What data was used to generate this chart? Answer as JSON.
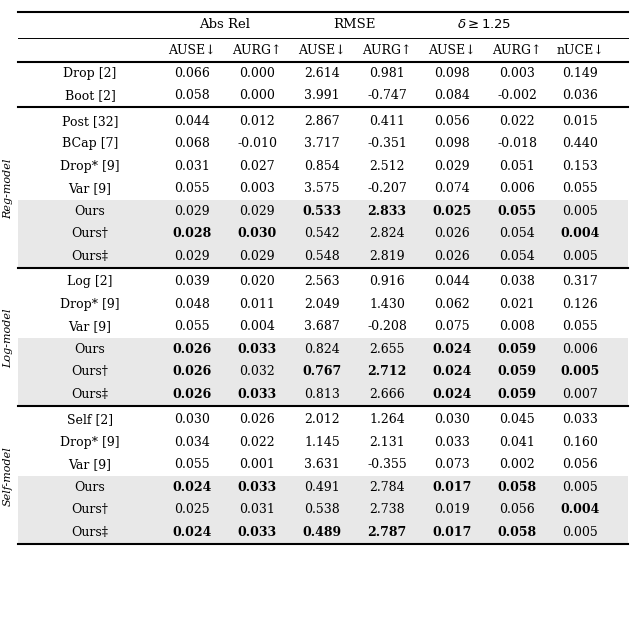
{
  "shaded_color": "#e8e8e8",
  "bg_color": "#ffffff",
  "text_color": "#000000",
  "col_headers_level2": [
    "AUSE↓",
    "AURG↑",
    "AUSE↓",
    "AURG↑",
    "AUSE↓",
    "AURG↑",
    "nUCE↓"
  ],
  "sections": [
    {
      "label": "",
      "rows": [
        {
          "method": "Drop [2]",
          "vals": [
            "0.066",
            "0.000",
            "2.614",
            "0.981",
            "0.098",
            "0.003",
            "0.149"
          ],
          "bold": [
            false,
            false,
            false,
            false,
            false,
            false,
            false
          ],
          "shaded": false
        },
        {
          "method": "Boot [2]",
          "vals": [
            "0.058",
            "0.000",
            "3.991",
            "-0.747",
            "0.084",
            "-0.002",
            "0.036"
          ],
          "bold": [
            false,
            false,
            false,
            false,
            false,
            false,
            false
          ],
          "shaded": false
        }
      ]
    },
    {
      "label": "Reg-model",
      "rows": [
        {
          "method": "Post [32]",
          "vals": [
            "0.044",
            "0.012",
            "2.867",
            "0.411",
            "0.056",
            "0.022",
            "0.015"
          ],
          "bold": [
            false,
            false,
            false,
            false,
            false,
            false,
            false
          ],
          "shaded": false
        },
        {
          "method": "BCap [7]",
          "vals": [
            "0.068",
            "-0.010",
            "3.717",
            "-0.351",
            "0.098",
            "-0.018",
            "0.440"
          ],
          "bold": [
            false,
            false,
            false,
            false,
            false,
            false,
            false
          ],
          "shaded": false
        },
        {
          "method": "Drop* [9]",
          "vals": [
            "0.031",
            "0.027",
            "0.854",
            "2.512",
            "0.029",
            "0.051",
            "0.153"
          ],
          "bold": [
            false,
            false,
            false,
            false,
            false,
            false,
            false
          ],
          "shaded": false
        },
        {
          "method": "Var [9]",
          "vals": [
            "0.055",
            "0.003",
            "3.575",
            "-0.207",
            "0.074",
            "0.006",
            "0.055"
          ],
          "bold": [
            false,
            false,
            false,
            false,
            false,
            false,
            false
          ],
          "shaded": false
        },
        {
          "method": "Ours",
          "vals": [
            "0.029",
            "0.029",
            "0.533",
            "2.833",
            "0.025",
            "0.055",
            "0.005"
          ],
          "bold": [
            false,
            false,
            true,
            true,
            true,
            true,
            false
          ],
          "shaded": true
        },
        {
          "method": "Ours†",
          "vals": [
            "0.028",
            "0.030",
            "0.542",
            "2.824",
            "0.026",
            "0.054",
            "0.004"
          ],
          "bold": [
            true,
            true,
            false,
            false,
            false,
            false,
            true
          ],
          "shaded": true
        },
        {
          "method": "Ours‡",
          "vals": [
            "0.029",
            "0.029",
            "0.548",
            "2.819",
            "0.026",
            "0.054",
            "0.005"
          ],
          "bold": [
            false,
            false,
            false,
            false,
            false,
            false,
            false
          ],
          "shaded": true
        }
      ]
    },
    {
      "label": "Log-model",
      "rows": [
        {
          "method": "Log [2]",
          "vals": [
            "0.039",
            "0.020",
            "2.563",
            "0.916",
            "0.044",
            "0.038",
            "0.317"
          ],
          "bold": [
            false,
            false,
            false,
            false,
            false,
            false,
            false
          ],
          "shaded": false
        },
        {
          "method": "Drop* [9]",
          "vals": [
            "0.048",
            "0.011",
            "2.049",
            "1.430",
            "0.062",
            "0.021",
            "0.126"
          ],
          "bold": [
            false,
            false,
            false,
            false,
            false,
            false,
            false
          ],
          "shaded": false
        },
        {
          "method": "Var [9]",
          "vals": [
            "0.055",
            "0.004",
            "3.687",
            "-0.208",
            "0.075",
            "0.008",
            "0.055"
          ],
          "bold": [
            false,
            false,
            false,
            false,
            false,
            false,
            false
          ],
          "shaded": false
        },
        {
          "method": "Ours",
          "vals": [
            "0.026",
            "0.033",
            "0.824",
            "2.655",
            "0.024",
            "0.059",
            "0.006"
          ],
          "bold": [
            true,
            true,
            false,
            false,
            true,
            true,
            false
          ],
          "shaded": true
        },
        {
          "method": "Ours†",
          "vals": [
            "0.026",
            "0.032",
            "0.767",
            "2.712",
            "0.024",
            "0.059",
            "0.005"
          ],
          "bold": [
            true,
            false,
            true,
            true,
            true,
            true,
            true
          ],
          "shaded": true
        },
        {
          "method": "Ours‡",
          "vals": [
            "0.026",
            "0.033",
            "0.813",
            "2.666",
            "0.024",
            "0.059",
            "0.007"
          ],
          "bold": [
            true,
            true,
            false,
            false,
            true,
            true,
            false
          ],
          "shaded": true
        }
      ]
    },
    {
      "label": "Self-model",
      "rows": [
        {
          "method": "Self [2]",
          "vals": [
            "0.030",
            "0.026",
            "2.012",
            "1.264",
            "0.030",
            "0.045",
            "0.033"
          ],
          "bold": [
            false,
            false,
            false,
            false,
            false,
            false,
            false
          ],
          "shaded": false
        },
        {
          "method": "Drop* [9]",
          "vals": [
            "0.034",
            "0.022",
            "1.145",
            "2.131",
            "0.033",
            "0.041",
            "0.160"
          ],
          "bold": [
            false,
            false,
            false,
            false,
            false,
            false,
            false
          ],
          "shaded": false
        },
        {
          "method": "Var [9]",
          "vals": [
            "0.055",
            "0.001",
            "3.631",
            "-0.355",
            "0.073",
            "0.002",
            "0.056"
          ],
          "bold": [
            false,
            false,
            false,
            false,
            false,
            false,
            false
          ],
          "shaded": false
        },
        {
          "method": "Ours",
          "vals": [
            "0.024",
            "0.033",
            "0.491",
            "2.784",
            "0.017",
            "0.058",
            "0.005"
          ],
          "bold": [
            true,
            true,
            false,
            false,
            true,
            true,
            false
          ],
          "shaded": true
        },
        {
          "method": "Ours†",
          "vals": [
            "0.025",
            "0.031",
            "0.538",
            "2.738",
            "0.019",
            "0.056",
            "0.004"
          ],
          "bold": [
            false,
            false,
            false,
            false,
            false,
            false,
            true
          ],
          "shaded": true
        },
        {
          "method": "Ours‡",
          "vals": [
            "0.024",
            "0.033",
            "0.489",
            "2.787",
            "0.017",
            "0.058",
            "0.005"
          ],
          "bold": [
            true,
            true,
            true,
            true,
            true,
            true,
            false
          ],
          "shaded": true
        }
      ]
    }
  ]
}
